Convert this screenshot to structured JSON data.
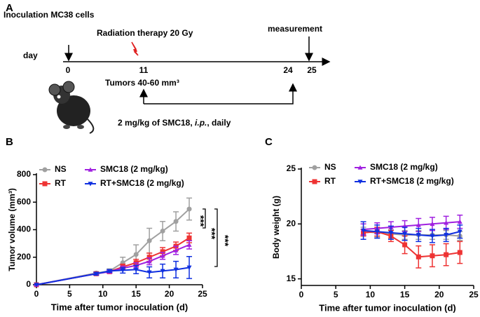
{
  "panel_a": {
    "label": "A",
    "inoculation": "Inoculation MC38 cells",
    "radiation": "Radiation therapy 20 Gy",
    "measurement": "measurement",
    "day": "day",
    "days": [
      "0",
      "11",
      "24",
      "25"
    ],
    "tumors": "Tumors 40-60 mm³",
    "treatment": [
      "2 mg/kg of SMC18, ",
      "i.p.",
      ", daily"
    ]
  },
  "chart_data": [
    {
      "type": "line",
      "panel_label": "B",
      "xlabel": "Time after tumor inoculation (d)",
      "ylabel": "Tumor volume (mm³)",
      "x": [
        0,
        9,
        11,
        13,
        15,
        17,
        19,
        21,
        23
      ],
      "series": [
        {
          "name": "NS",
          "color": "#a0a0a0",
          "marker": "circle",
          "values": [
            0,
            85,
            100,
            160,
            220,
            320,
            390,
            460,
            550
          ],
          "errors": [
            0,
            10,
            15,
            40,
            70,
            90,
            70,
            70,
            80
          ]
        },
        {
          "name": "RT",
          "color": "#ee3333",
          "marker": "square",
          "values": [
            0,
            80,
            95,
            130,
            160,
            200,
            240,
            280,
            340
          ],
          "errors": [
            0,
            10,
            10,
            20,
            25,
            30,
            30,
            30,
            35
          ]
        },
        {
          "name": "SMC18 (2 mg/kg)",
          "color": "#a020e0",
          "marker": "triangle-up",
          "values": [
            0,
            80,
            95,
            120,
            140,
            170,
            210,
            250,
            290
          ],
          "errors": [
            0,
            10,
            10,
            15,
            20,
            25,
            25,
            30,
            30
          ]
        },
        {
          "name": "RT+SMC18 (2 mg/kg)",
          "color": "#1030e0",
          "marker": "triangle-down",
          "values": [
            0,
            80,
            100,
            105,
            110,
            90,
            100,
            110,
            125
          ],
          "errors": [
            0,
            10,
            10,
            20,
            30,
            40,
            50,
            60,
            80
          ]
        }
      ],
      "xlim": [
        0,
        25
      ],
      "xticks": [
        0,
        5,
        10,
        15,
        20,
        25
      ],
      "ylim": [
        0,
        800
      ],
      "yticks": [
        0,
        200,
        400,
        600,
        800
      ],
      "significance": [
        "***",
        "***",
        "***"
      ]
    },
    {
      "type": "line",
      "panel_label": "C",
      "xlabel": "Time after tumor inoculation (d)",
      "ylabel": "Body weight (g)",
      "x": [
        9,
        11,
        13,
        15,
        17,
        19,
        21,
        23
      ],
      "series": [
        {
          "name": "NS",
          "color": "#a0a0a0",
          "marker": "circle",
          "values": [
            19.3,
            19.2,
            19.1,
            19.0,
            19.0,
            19.0,
            19.0,
            18.9
          ],
          "errors": [
            0.4,
            0.4,
            0.4,
            0.4,
            0.4,
            0.4,
            0.4,
            0.4
          ]
        },
        {
          "name": "RT",
          "color": "#ee3333",
          "marker": "square",
          "values": [
            19.2,
            19.3,
            18.9,
            18.1,
            17.0,
            17.1,
            17.2,
            17.4
          ],
          "errors": [
            0.3,
            0.4,
            0.5,
            0.8,
            1.0,
            1.0,
            1.0,
            1.0
          ]
        },
        {
          "name": "SMC18 (2 mg/kg)",
          "color": "#a020e0",
          "marker": "triangle-up",
          "values": [
            19.5,
            19.6,
            19.7,
            19.8,
            19.9,
            20.0,
            20.1,
            20.2
          ],
          "errors": [
            0.5,
            0.5,
            0.5,
            0.5,
            0.6,
            0.6,
            0.6,
            0.6
          ]
        },
        {
          "name": "RT+SMC18 (2 mg/kg)",
          "color": "#1030e0",
          "marker": "triangle-down",
          "values": [
            19.4,
            19.3,
            19.2,
            19.1,
            19.0,
            18.9,
            19.0,
            19.3
          ],
          "errors": [
            0.8,
            0.6,
            0.6,
            0.6,
            0.6,
            0.6,
            0.6,
            0.6
          ]
        }
      ],
      "xlim": [
        0,
        25
      ],
      "xticks": [
        0,
        5,
        10,
        15,
        20,
        25
      ],
      "ylim": [
        14.4,
        25
      ],
      "yticks": [
        15,
        20,
        25
      ]
    }
  ]
}
